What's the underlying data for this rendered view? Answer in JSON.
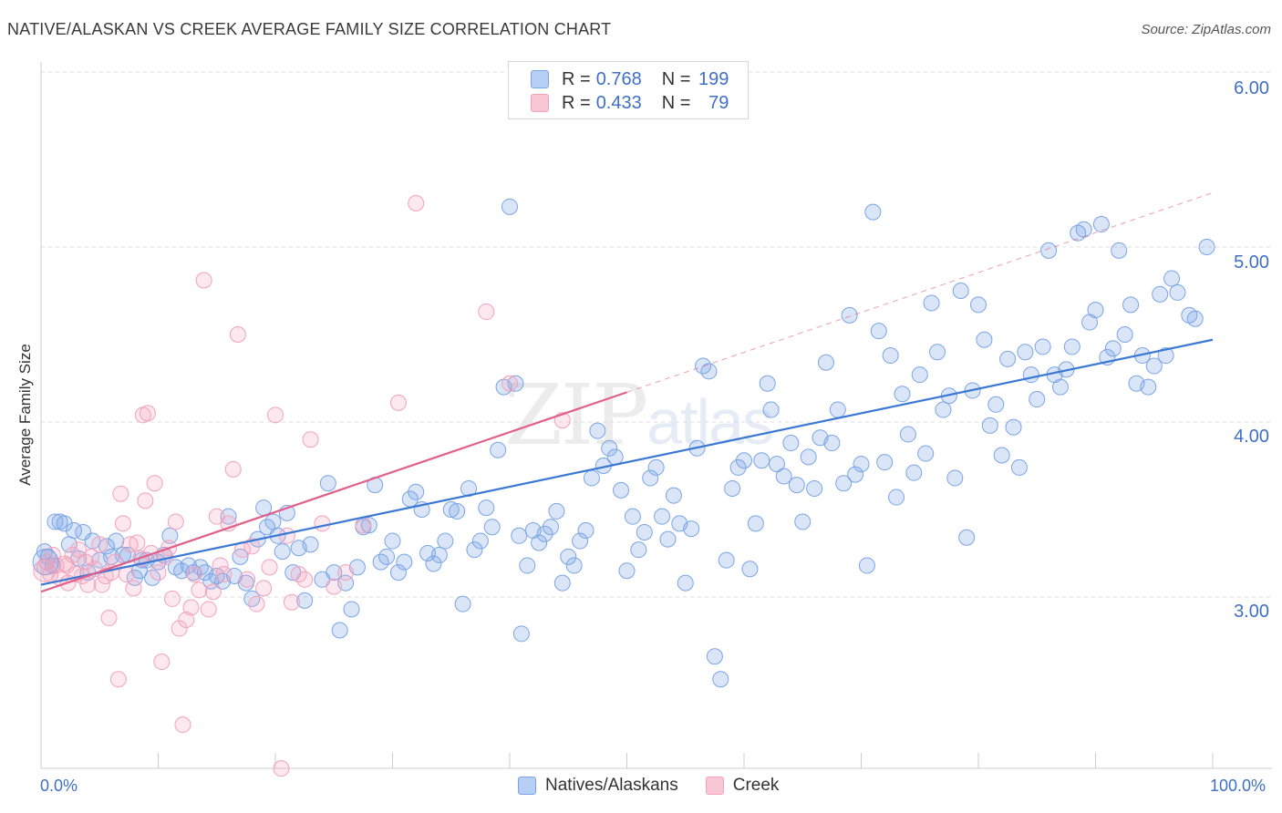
{
  "title": "NATIVE/ALASKAN VS CREEK AVERAGE FAMILY SIZE CORRELATION CHART",
  "source": "Source: ZipAtlas.com",
  "watermark": {
    "zip": "ZIP",
    "atlas": "atlas"
  },
  "legend": {
    "rows": [
      {
        "r_label": "R = ",
        "r_value": "0.768",
        "n_label": "N = ",
        "n_value": "199"
      },
      {
        "r_label": "R = ",
        "r_value": "0.433",
        "n_label": "N = ",
        "n_value": "79"
      }
    ]
  },
  "chart_data": {
    "type": "scatter",
    "title": "NATIVE/ALASKAN VS CREEK AVERAGE FAMILY SIZE CORRELATION CHART",
    "xlabel": "",
    "ylabel": "Average Family Size",
    "xlim": [
      0,
      100
    ],
    "ylim": [
      2.0,
      6.2
    ],
    "x_tick_labels": [
      "0.0%",
      "100.0%"
    ],
    "y_ticks": [
      3.0,
      4.0,
      5.0,
      6.0
    ],
    "y_tick_labels": [
      "3.00",
      "4.00",
      "5.00",
      "6.00"
    ],
    "grid": "horizontal dashed",
    "legend_position": "top-center and bottom-center",
    "colors": {
      "natives": "#7ba4e6",
      "natives_line": "#3a78d4",
      "creek": "#f2a2bb",
      "creek_line": "#e0608a"
    },
    "series": [
      {
        "name": "Natives/Alaskans",
        "r": 0.768,
        "n": 199,
        "trend": {
          "x": [
            0,
            100
          ],
          "y": [
            3.07,
            4.47
          ]
        },
        "points": [
          [
            0.3,
            3.26
          ],
          [
            0.6,
            3.23
          ],
          [
            1.0,
            3.18
          ],
          [
            1.2,
            3.43
          ],
          [
            1.6,
            3.43
          ],
          [
            2.0,
            3.42
          ],
          [
            2.4,
            3.3
          ],
          [
            2.8,
            3.38
          ],
          [
            3.2,
            3.22
          ],
          [
            3.6,
            3.37
          ],
          [
            4.0,
            3.14
          ],
          [
            4.4,
            3.32
          ],
          [
            5.0,
            3.21
          ],
          [
            5.6,
            3.29
          ],
          [
            6.0,
            3.23
          ],
          [
            6.4,
            3.32
          ],
          [
            7.0,
            3.24
          ],
          [
            7.4,
            3.24
          ],
          [
            8.0,
            3.11
          ],
          [
            8.4,
            3.15
          ],
          [
            8.6,
            3.21
          ],
          [
            9.0,
            3.21
          ],
          [
            9.5,
            3.11
          ],
          [
            10.0,
            3.2
          ],
          [
            10.5,
            3.24
          ],
          [
            11.0,
            3.35
          ],
          [
            11.5,
            3.17
          ],
          [
            12.0,
            3.15
          ],
          [
            12.6,
            3.18
          ],
          [
            13.0,
            3.14
          ],
          [
            13.6,
            3.17
          ],
          [
            14.0,
            3.14
          ],
          [
            14.5,
            3.09
          ],
          [
            15.0,
            3.12
          ],
          [
            15.5,
            3.09
          ],
          [
            16.0,
            3.46
          ],
          [
            16.5,
            3.12
          ],
          [
            17.0,
            3.23
          ],
          [
            17.5,
            3.08
          ],
          [
            18.0,
            2.99
          ],
          [
            18.5,
            3.33
          ],
          [
            19.0,
            3.51
          ],
          [
            19.3,
            3.4
          ],
          [
            19.8,
            3.43
          ],
          [
            20.2,
            3.35
          ],
          [
            20.6,
            3.26
          ],
          [
            21.0,
            3.48
          ],
          [
            21.5,
            3.14
          ],
          [
            22.0,
            3.28
          ],
          [
            22.5,
            2.98
          ],
          [
            23.0,
            3.3
          ],
          [
            24.0,
            3.1
          ],
          [
            24.5,
            3.65
          ],
          [
            25.0,
            3.14
          ],
          [
            25.5,
            2.81
          ],
          [
            26.0,
            3.08
          ],
          [
            26.5,
            2.93
          ],
          [
            27.0,
            3.17
          ],
          [
            27.5,
            3.4
          ],
          [
            28.0,
            3.41
          ],
          [
            28.5,
            3.64
          ],
          [
            29.0,
            3.2
          ],
          [
            29.5,
            3.23
          ],
          [
            30.0,
            3.32
          ],
          [
            30.5,
            3.14
          ],
          [
            31.0,
            3.2
          ],
          [
            31.5,
            3.56
          ],
          [
            32.0,
            3.6
          ],
          [
            32.5,
            3.5
          ],
          [
            33.0,
            3.25
          ],
          [
            33.5,
            3.19
          ],
          [
            34.0,
            3.24
          ],
          [
            34.5,
            3.32
          ],
          [
            35.0,
            3.5
          ],
          [
            35.5,
            3.49
          ],
          [
            36.0,
            2.96
          ],
          [
            36.5,
            3.62
          ],
          [
            37.0,
            3.27
          ],
          [
            37.5,
            3.32
          ],
          [
            38.0,
            3.51
          ],
          [
            38.5,
            3.4
          ],
          [
            39.0,
            3.84
          ],
          [
            39.5,
            4.2
          ],
          [
            40.0,
            5.23
          ],
          [
            40.5,
            4.22
          ],
          [
            40.8,
            3.35
          ],
          [
            41.0,
            2.79
          ],
          [
            41.5,
            3.18
          ],
          [
            42.0,
            3.38
          ],
          [
            42.5,
            3.31
          ],
          [
            43.0,
            3.36
          ],
          [
            43.5,
            3.4
          ],
          [
            44.0,
            3.49
          ],
          [
            44.5,
            3.08
          ],
          [
            45.0,
            3.23
          ],
          [
            45.5,
            3.18
          ],
          [
            46.0,
            3.32
          ],
          [
            46.5,
            3.38
          ],
          [
            47.0,
            3.68
          ],
          [
            47.5,
            3.95
          ],
          [
            48.0,
            3.75
          ],
          [
            48.5,
            3.85
          ],
          [
            49.0,
            3.8
          ],
          [
            49.5,
            3.61
          ],
          [
            50.0,
            3.15
          ],
          [
            50.5,
            3.46
          ],
          [
            51.0,
            3.27
          ],
          [
            51.5,
            3.37
          ],
          [
            52.0,
            3.68
          ],
          [
            52.5,
            3.74
          ],
          [
            53.0,
            3.46
          ],
          [
            53.5,
            3.33
          ],
          [
            54.0,
            3.58
          ],
          [
            54.5,
            3.42
          ],
          [
            55.0,
            3.08
          ],
          [
            55.5,
            3.39
          ],
          [
            56.0,
            3.85
          ],
          [
            56.5,
            4.32
          ],
          [
            57.0,
            4.29
          ],
          [
            57.5,
            2.66
          ],
          [
            58.0,
            2.53
          ],
          [
            58.5,
            3.21
          ],
          [
            59.0,
            3.62
          ],
          [
            59.5,
            3.74
          ],
          [
            60.0,
            3.78
          ],
          [
            60.5,
            3.16
          ],
          [
            61.0,
            3.42
          ],
          [
            61.5,
            3.78
          ],
          [
            62.0,
            4.22
          ],
          [
            62.3,
            4.07
          ],
          [
            62.8,
            3.76
          ],
          [
            63.4,
            3.69
          ],
          [
            64.0,
            3.88
          ],
          [
            64.5,
            3.64
          ],
          [
            65.0,
            3.43
          ],
          [
            65.5,
            3.8
          ],
          [
            66.0,
            3.62
          ],
          [
            66.5,
            3.91
          ],
          [
            67.0,
            4.34
          ],
          [
            67.5,
            3.88
          ],
          [
            68.0,
            4.07
          ],
          [
            68.5,
            3.65
          ],
          [
            69.0,
            4.61
          ],
          [
            69.5,
            3.7
          ],
          [
            70.0,
            3.76
          ],
          [
            70.5,
            3.18
          ],
          [
            71.0,
            5.2
          ],
          [
            71.5,
            4.52
          ],
          [
            72.0,
            3.77
          ],
          [
            72.5,
            4.38
          ],
          [
            73.0,
            3.57
          ],
          [
            73.5,
            4.16
          ],
          [
            74.0,
            3.93
          ],
          [
            74.5,
            3.71
          ],
          [
            75.0,
            4.27
          ],
          [
            75.5,
            3.82
          ],
          [
            76.0,
            4.68
          ],
          [
            76.5,
            4.4
          ],
          [
            77.0,
            4.07
          ],
          [
            77.5,
            4.15
          ],
          [
            78.0,
            3.68
          ],
          [
            78.5,
            4.75
          ],
          [
            79.0,
            3.34
          ],
          [
            79.5,
            4.18
          ],
          [
            80.0,
            4.67
          ],
          [
            80.5,
            4.47
          ],
          [
            81.0,
            3.98
          ],
          [
            81.5,
            4.1
          ],
          [
            82.0,
            3.81
          ],
          [
            82.5,
            4.36
          ],
          [
            83.0,
            3.97
          ],
          [
            83.5,
            3.74
          ],
          [
            84.0,
            4.4
          ],
          [
            84.5,
            4.27
          ],
          [
            85.0,
            4.13
          ],
          [
            85.5,
            4.43
          ],
          [
            86.0,
            4.98
          ],
          [
            86.5,
            4.27
          ],
          [
            87.0,
            4.2
          ],
          [
            87.5,
            4.3
          ],
          [
            88.0,
            4.43
          ],
          [
            88.5,
            5.08
          ],
          [
            89.0,
            5.1
          ],
          [
            89.5,
            4.57
          ],
          [
            90.0,
            4.64
          ],
          [
            90.5,
            5.13
          ],
          [
            91.0,
            4.37
          ],
          [
            91.5,
            4.42
          ],
          [
            92.0,
            4.98
          ],
          [
            92.5,
            4.5
          ],
          [
            93.0,
            4.67
          ],
          [
            93.5,
            4.22
          ],
          [
            94.0,
            4.38
          ],
          [
            94.5,
            4.2
          ],
          [
            95.0,
            4.32
          ],
          [
            95.5,
            4.73
          ],
          [
            96.0,
            4.38
          ],
          [
            96.5,
            4.82
          ],
          [
            97.0,
            4.74
          ],
          [
            98.0,
            4.61
          ],
          [
            98.5,
            4.59
          ],
          [
            99.5,
            5.0
          ]
        ]
      },
      {
        "name": "Creek",
        "r": 0.433,
        "n": 79,
        "trend": {
          "x": [
            0,
            50
          ],
          "y": [
            3.03,
            4.17
          ]
        },
        "points": [
          [
            0.3,
            3.17
          ],
          [
            0.5,
            3.2
          ],
          [
            0.8,
            3.13
          ],
          [
            1.0,
            3.24
          ],
          [
            1.3,
            3.18
          ],
          [
            1.6,
            3.11
          ],
          [
            2.0,
            3.19
          ],
          [
            2.3,
            3.08
          ],
          [
            2.7,
            3.24
          ],
          [
            3.0,
            3.13
          ],
          [
            3.2,
            3.27
          ],
          [
            3.5,
            3.12
          ],
          [
            3.8,
            3.2
          ],
          [
            4.0,
            3.07
          ],
          [
            4.3,
            3.23
          ],
          [
            4.6,
            3.16
          ],
          [
            5.0,
            3.3
          ],
          [
            5.2,
            3.07
          ],
          [
            5.5,
            3.12
          ],
          [
            5.8,
            2.88
          ],
          [
            6.0,
            3.14
          ],
          [
            6.3,
            3.2
          ],
          [
            6.6,
            2.53
          ],
          [
            6.8,
            3.59
          ],
          [
            7.0,
            3.42
          ],
          [
            7.3,
            3.13
          ],
          [
            7.6,
            3.3
          ],
          [
            7.9,
            3.05
          ],
          [
            8.2,
            3.31
          ],
          [
            8.5,
            3.22
          ],
          [
            8.7,
            4.04
          ],
          [
            8.9,
            3.55
          ],
          [
            9.1,
            4.05
          ],
          [
            9.4,
            3.25
          ],
          [
            9.7,
            3.65
          ],
          [
            10.0,
            3.14
          ],
          [
            10.3,
            2.63
          ],
          [
            10.6,
            3.23
          ],
          [
            10.9,
            3.28
          ],
          [
            11.2,
            2.99
          ],
          [
            11.5,
            3.43
          ],
          [
            11.8,
            2.82
          ],
          [
            12.1,
            2.27
          ],
          [
            12.4,
            2.87
          ],
          [
            12.8,
            2.94
          ],
          [
            13.1,
            3.13
          ],
          [
            13.5,
            3.04
          ],
          [
            13.9,
            4.81
          ],
          [
            14.3,
            2.93
          ],
          [
            14.7,
            3.03
          ],
          [
            15.0,
            3.46
          ],
          [
            15.3,
            3.18
          ],
          [
            15.6,
            3.13
          ],
          [
            16.0,
            3.42
          ],
          [
            16.4,
            3.73
          ],
          [
            16.8,
            4.5
          ],
          [
            17.2,
            3.27
          ],
          [
            17.6,
            3.1
          ],
          [
            18.0,
            3.29
          ],
          [
            18.4,
            2.96
          ],
          [
            19.0,
            3.05
          ],
          [
            19.5,
            3.17
          ],
          [
            20.0,
            4.04
          ],
          [
            20.5,
            2.02
          ],
          [
            21.0,
            3.35
          ],
          [
            21.4,
            2.97
          ],
          [
            22.0,
            3.13
          ],
          [
            22.5,
            3.1
          ],
          [
            23.0,
            3.9
          ],
          [
            24.0,
            3.42
          ],
          [
            25.0,
            3.06
          ],
          [
            26.0,
            3.14
          ],
          [
            27.5,
            3.41
          ],
          [
            30.5,
            4.11
          ],
          [
            32.0,
            5.25
          ],
          [
            38.0,
            4.63
          ],
          [
            40.0,
            4.22
          ],
          [
            44.5,
            4.01
          ],
          [
            2.2,
            3.18
          ]
        ]
      }
    ]
  },
  "bottom_legend": [
    "Natives/Alaskans",
    "Creek"
  ]
}
